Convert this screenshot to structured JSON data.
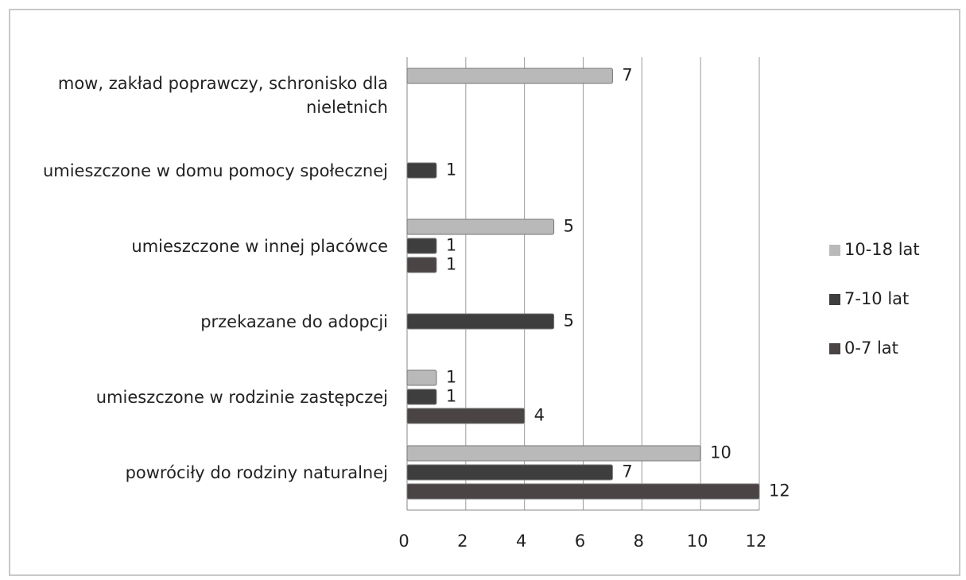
{
  "chart_data": {
    "type": "hbar",
    "categories": [
      "mow, zakład poprawczy, schronisko dla nieletnich",
      "umieszczone w domu pomocy społecznej",
      "umieszczone w innej placówce",
      "przekazane do adopcji",
      "umieszczone w rodzinie zastępczej",
      "powróciły do rodziny naturalnej"
    ],
    "series": [
      {
        "name": "10-18 lat",
        "color": "#b9b9b9",
        "values": [
          7,
          null,
          5,
          null,
          1,
          10
        ]
      },
      {
        "name": "7-10 lat",
        "color": "#3e3e3e",
        "values": [
          null,
          1,
          1,
          5,
          1,
          7
        ]
      },
      {
        "name": "0-7 lat",
        "color": "#4a4444",
        "values": [
          null,
          null,
          1,
          null,
          4,
          12
        ]
      }
    ],
    "xlim": [
      0,
      12
    ],
    "xticks": [
      0,
      2,
      4,
      6,
      8,
      10,
      12
    ],
    "grid": true,
    "legend": "right"
  }
}
